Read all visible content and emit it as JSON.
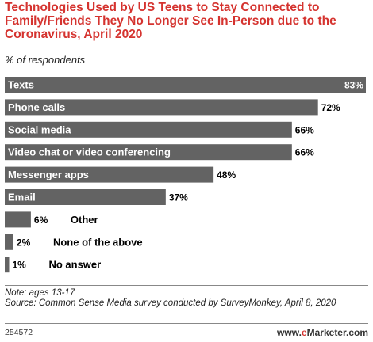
{
  "header": {
    "title": "Technologies Used by US Teens to Stay Connected to Family/Friends They No Longer See In-Person due to the Coronavirus, April 2020",
    "subtitle": "% of respondents"
  },
  "chart_data": {
    "type": "bar",
    "orientation": "horizontal",
    "categories": [
      "Texts",
      "Phone calls",
      "Social media",
      "Video chat or video conferencing",
      "Messenger apps",
      "Email",
      "Other",
      "None of the above",
      "No answer"
    ],
    "values": [
      83,
      72,
      66,
      66,
      48,
      37,
      6,
      2,
      1
    ],
    "value_labels": [
      "83%",
      "72%",
      "66%",
      "66%",
      "48%",
      "37%",
      "6%",
      "2%",
      "1%"
    ],
    "xlim": [
      0,
      83
    ],
    "bar_color": "#636363",
    "grid": false
  },
  "footer": {
    "note": "Note: ages 13-17",
    "source": "Source: Common Sense Media survey conducted by SurveyMonkey, April 8, 2020",
    "chart_id": "254572",
    "brand_prefix": "www.",
    "brand_accent": "e",
    "brand_suffix": "Marketer.com"
  }
}
